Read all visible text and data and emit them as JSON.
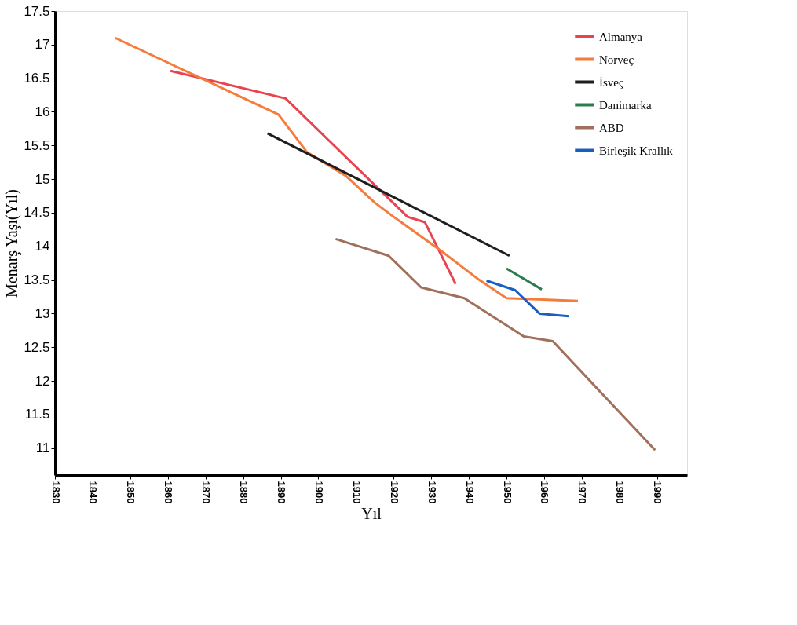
{
  "chart_data": {
    "type": "line",
    "xlabel": "Yıl",
    "ylabel": "Menarş Yaşı(Yıl)",
    "xlim": [
      1830,
      1998
    ],
    "ylim": [
      10.6,
      17.5
    ],
    "xticks": [
      1830,
      1840,
      1850,
      1860,
      1870,
      1880,
      1890,
      1900,
      1910,
      1920,
      1930,
      1940,
      1950,
      1960,
      1970,
      1980,
      1990
    ],
    "yticks": [
      11,
      11.5,
      12,
      12.5,
      13,
      13.5,
      14,
      14.5,
      15,
      15.5,
      16,
      16.5,
      17,
      17.5
    ],
    "grid": false,
    "legend": "top right",
    "marker": "none",
    "line_style": "solid",
    "series": [
      {
        "name": "Almanya",
        "color": "#e8434f",
        "x": [
          1860.7,
          1891.3,
          1902.7,
          1923.7,
          1928.3,
          1936.5
        ],
        "values": [
          16.61,
          16.2,
          15.58,
          14.44,
          14.36,
          13.44
        ]
      },
      {
        "name": "Norveç",
        "color": "#f57c3c",
        "x": [
          1846,
          1889.4,
          1897,
          1907.3,
          1915,
          1920,
          1932.7,
          1942.8,
          1950,
          1969
        ],
        "values": [
          17.1,
          15.96,
          15.4,
          15.05,
          14.65,
          14.44,
          13.93,
          13.5,
          13.23,
          13.19
        ]
      },
      {
        "name": "İsveç",
        "color": "#1e1e1e",
        "x": [
          1886.5,
          1950.8
        ],
        "values": [
          15.68,
          13.86
        ]
      },
      {
        "name": "Danimarka",
        "color": "#2e7d4f",
        "x": [
          1950,
          1959.4
        ],
        "values": [
          13.67,
          13.36
        ]
      },
      {
        "name": "ABD",
        "color": "#a0705a",
        "x": [
          1904.6,
          1918.7,
          1927.3,
          1938.8,
          1954.6,
          1962.3,
          1989.5
        ],
        "values": [
          14.11,
          13.86,
          13.39,
          13.23,
          12.66,
          12.59,
          10.97
        ]
      },
      {
        "name": "Birleşik Krallık",
        "color": "#1a5fc0",
        "x": [
          1944.7,
          1952.3,
          1958.8,
          1966.6
        ],
        "values": [
          13.49,
          13.35,
          13.0,
          12.96
        ]
      }
    ]
  }
}
